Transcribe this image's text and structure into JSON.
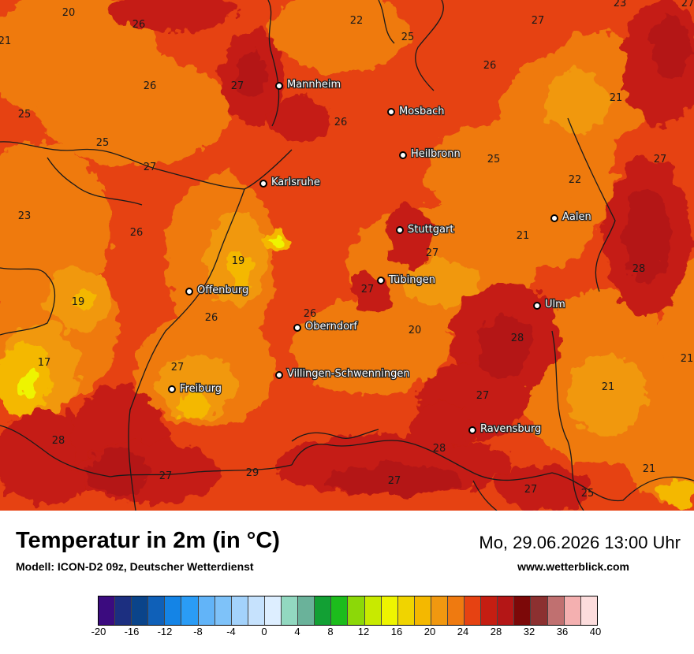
{
  "map": {
    "cities": [
      {
        "name": "Mannheim"
      },
      {
        "name": "Mosbach"
      },
      {
        "name": "Heilbronn"
      },
      {
        "name": "Karlsruhe"
      },
      {
        "name": "Stuttgart"
      },
      {
        "name": "Aalen"
      },
      {
        "name": "Tübingen"
      },
      {
        "name": "Offenburg"
      },
      {
        "name": "Ulm"
      },
      {
        "name": "Oberndorf"
      },
      {
        "name": "Villingen-Schwenningen"
      },
      {
        "name": "Freiburg"
      },
      {
        "name": "Ravensburg"
      }
    ],
    "temperature_labels": [
      "20",
      "26",
      "22",
      "27",
      "23",
      "27",
      "21",
      "26",
      "25",
      "27",
      "26",
      "25",
      "26",
      "21",
      "25",
      "27",
      "25",
      "22",
      "23",
      "26",
      "21",
      "27",
      "19",
      "28",
      "19",
      "27",
      "26",
      "26",
      "17",
      "27",
      "20",
      "28",
      "21",
      "27",
      "21",
      "27",
      "28",
      "28",
      "27",
      "29",
      "27",
      "27",
      "25",
      "21"
    ]
  },
  "footer": {
    "title": "Temperatur in 2m (in °C)",
    "model": "Modell: ICON-D2 09z, Deutscher Wetterdienst",
    "datetime": "Mo, 29.06.2026 13:00 Uhr",
    "website": "www.wetterblick.com"
  },
  "legend": {
    "colors": [
      "#3b0b7f",
      "#1c2f80",
      "#0a448a",
      "#0f60b8",
      "#1484e6",
      "#2a9cf6",
      "#62b4f8",
      "#7ec2f9",
      "#a3d2fb",
      "#c6e2fd",
      "#ddeeff",
      "#92d8c0",
      "#6ab29a",
      "#12a034",
      "#1cbc1c",
      "#8cd808",
      "#c8ea00",
      "#eef400",
      "#f0d400",
      "#f4b800",
      "#f19810",
      "#ef7a10",
      "#e64212",
      "#c51e12",
      "#b41616",
      "#7c0808",
      "#8c3030",
      "#c07070",
      "#f4b0b0",
      "#fcdcdc"
    ],
    "ticks": [
      "-20",
      "-16",
      "-12",
      "-8",
      "-4",
      "0",
      "4",
      "8",
      "12",
      "16",
      "20",
      "24",
      "28",
      "32",
      "36",
      "40"
    ]
  }
}
